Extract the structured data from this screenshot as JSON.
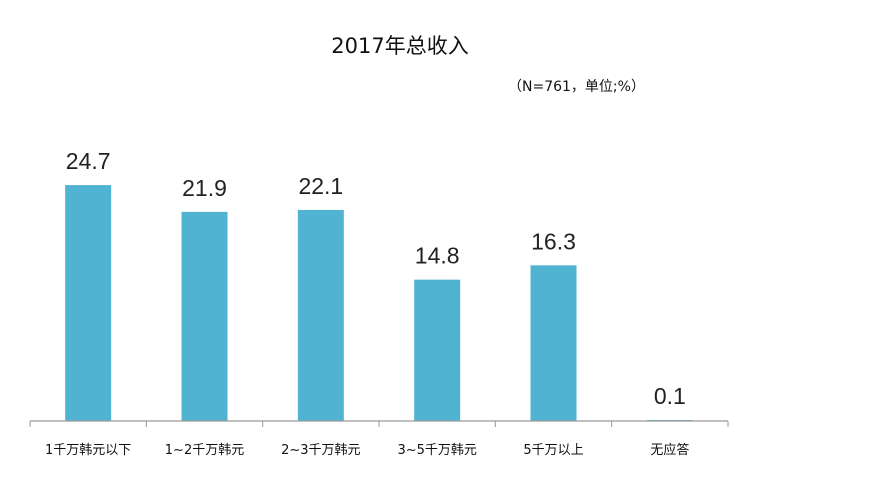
{
  "chart_data": {
    "type": "bar",
    "title": "2017年总收入",
    "note": "（N=761，单位;%）",
    "categories": [
      "1千万韩元以下",
      "1~2千万韩元",
      "2~3千万韩元",
      "3~5千万韩元",
      "5千万以上",
      "无应答"
    ],
    "values": [
      24.7,
      21.9,
      22.1,
      14.8,
      16.3,
      0.1
    ],
    "value_labels": [
      "24.7",
      "21.9",
      "22.1",
      "14.8",
      "16.3",
      "0.1"
    ],
    "xlabel": "",
    "ylabel": "",
    "ylim": [
      0,
      30
    ],
    "grid": false,
    "legend": "none",
    "bar_color": "#4fb3d1",
    "axis_color": "#9a9a9a"
  }
}
